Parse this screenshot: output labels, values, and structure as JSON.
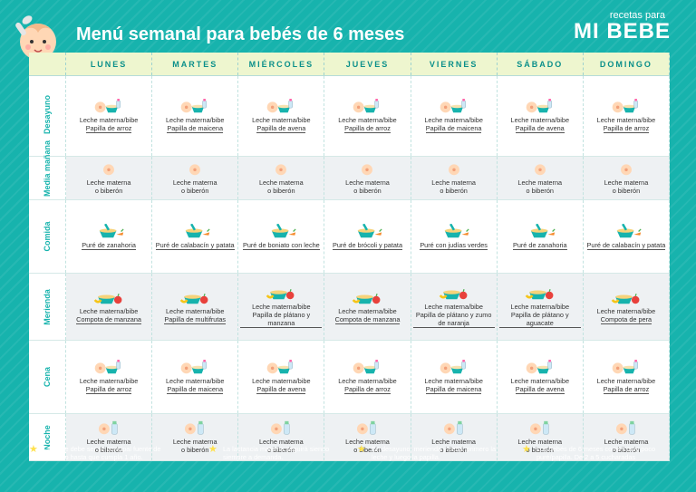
{
  "header": {
    "title": "Menú semanal para bebés de 6 meses",
    "brand_small": "recetas para",
    "brand_big": "MI BEBE"
  },
  "days": [
    "LUNES",
    "MARTES",
    "MIÉRCOLES",
    "JUEVES",
    "VIERNES",
    "SÁBADO",
    "DOMINGO"
  ],
  "rows": [
    {
      "label": "Desayuno",
      "icon": "bottle-bowl-icon",
      "cells": [
        {
          "l1": "Leche materna/bibe",
          "l2": "Papilla de arroz"
        },
        {
          "l1": "Leche materna/bibe",
          "l2": "Papilla de maicena"
        },
        {
          "l1": "Leche materna/bibe",
          "l2": "Papilla de avena"
        },
        {
          "l1": "Leche materna/bibe",
          "l2": "Papilla de arroz"
        },
        {
          "l1": "Leche materna/bibe",
          "l2": "Papilla de maicena"
        },
        {
          "l1": "Leche materna/bibe",
          "l2": "Papilla de avena"
        },
        {
          "l1": "Leche materna/bibe",
          "l2": "Papilla de arroz"
        }
      ]
    },
    {
      "label": "Media mañana",
      "icon": "breast-icon",
      "cells": [
        {
          "l1": "Leche materna",
          "l2": "o biberón"
        },
        {
          "l1": "Leche materna",
          "l2": "o biberón"
        },
        {
          "l1": "Leche materna",
          "l2": "o biberón"
        },
        {
          "l1": "Leche materna",
          "l2": "o biberón"
        },
        {
          "l1": "Leche materna",
          "l2": "o biberón"
        },
        {
          "l1": "Leche materna",
          "l2": "o biberón"
        },
        {
          "l1": "Leche materna",
          "l2": "o biberón"
        }
      ]
    },
    {
      "label": "Comida",
      "icon": "puree-bowl-icon",
      "cells": [
        {
          "l1": "",
          "l2": "Puré de zanahoria"
        },
        {
          "l1": "",
          "l2": "Puré de calabacín y patata"
        },
        {
          "l1": "",
          "l2": "Puré de boniato con leche"
        },
        {
          "l1": "",
          "l2": "Puré de brócoli y patata"
        },
        {
          "l1": "",
          "l2": "Puré con judías verdes"
        },
        {
          "l1": "",
          "l2": "Puré de zanahoria"
        },
        {
          "l1": "",
          "l2": "Puré de calabacín y patata"
        }
      ]
    },
    {
      "label": "Merienda",
      "icon": "fruit-bowl-icon",
      "cells": [
        {
          "l1": "Leche materna/bibe",
          "l2": "Compota de manzana"
        },
        {
          "l1": "Leche materna/bibe",
          "l2": "Papilla de multifrutas"
        },
        {
          "l1": "Leche materna/bibe",
          "l2": "Papilla de plátano y manzana"
        },
        {
          "l1": "Leche materna/bibe",
          "l2": "Compota de manzana"
        },
        {
          "l1": "Leche materna/bibe",
          "l2": "Papilla de plátano y zumo de naranja"
        },
        {
          "l1": "Leche materna/bibe",
          "l2": "Papilla de plátano y aguacate"
        },
        {
          "l1": "Leche materna/bibe",
          "l2": "Compota de pera"
        }
      ]
    },
    {
      "label": "Cena",
      "icon": "bottle-bowl-icon",
      "cells": [
        {
          "l1": "Leche materna/bibe",
          "l2": "Papilla de arroz"
        },
        {
          "l1": "Leche materna/bibe",
          "l2": "Papilla de maicena"
        },
        {
          "l1": "Leche materna/bibe",
          "l2": "Papilla de avena"
        },
        {
          "l1": "Leche materna/bibe",
          "l2": "Papilla de arroz"
        },
        {
          "l1": "Leche materna/bibe",
          "l2": "Papilla de maicena"
        },
        {
          "l1": "Leche materna/bibe",
          "l2": "Papilla de avena"
        },
        {
          "l1": "Leche materna/bibe",
          "l2": "Papilla de arroz"
        }
      ]
    },
    {
      "label": "Noche",
      "icon": "breast-bottle-icon",
      "cells": [
        {
          "l1": "Leche materna",
          "l2": "o biberón"
        },
        {
          "l1": "Leche materna",
          "l2": "o biberón"
        },
        {
          "l1": "Leche materna",
          "l2": "o biberón"
        },
        {
          "l1": "Leche materna",
          "l2": "o biberón"
        },
        {
          "l1": "Leche materna",
          "l2": "o biberón"
        },
        {
          "l1": "Leche materna",
          "l2": "o biberón"
        },
        {
          "l1": "Leche materna",
          "l2": "o biberón"
        }
      ]
    }
  ],
  "notes": [
    "La leche debe ser su principal fuente de alimento hasta que cumpla 1 año.",
    "La lactancia materna seguirá siendo siempre a demanda.",
    "En desayuno, merienda y cena, primero la leche y luego la papilla.",
    "Los bebés de 6 meses comen muy poco puré/papilla. De 2 a 5 cucharadas"
  ],
  "colors": {
    "background": "#17b3ad",
    "header_row": "#eef6cf",
    "accent_text": "#0a8f8a",
    "star": "#ffe14d"
  }
}
